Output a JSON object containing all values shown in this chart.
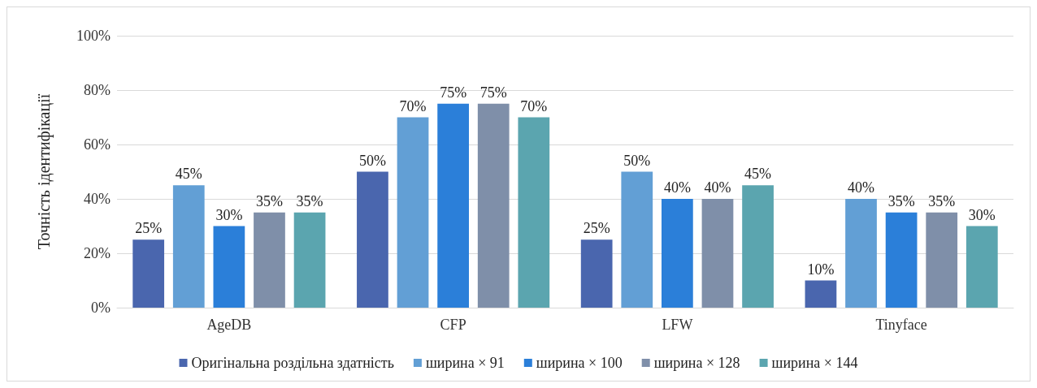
{
  "chart_data": {
    "type": "bar",
    "ylabel": "Точність ідентифікації",
    "categories": [
      "AgeDB",
      "CFP",
      "LFW",
      "Tinyface"
    ],
    "series": [
      {
        "name": "Оригінальна роздільна здатність",
        "color": "#4a66ae",
        "values": [
          25,
          50,
          25,
          10
        ],
        "value_labels": [
          "25%",
          "50%",
          "25%",
          "10%"
        ]
      },
      {
        "name": "ширина × 91",
        "color": "#629fd5",
        "values": [
          45,
          70,
          50,
          40
        ],
        "value_labels": [
          "45%",
          "70%",
          "50%",
          "40%"
        ]
      },
      {
        "name": "ширина × 100",
        "color": "#2b7fd9",
        "values": [
          30,
          75,
          40,
          35
        ],
        "value_labels": [
          "30%",
          "75%",
          "40%",
          "35%"
        ]
      },
      {
        "name": "ширина × 128",
        "color": "#7f8fa9",
        "values": [
          35,
          75,
          40,
          35
        ],
        "value_labels": [
          "35%",
          "75%",
          "40%",
          "35%"
        ]
      },
      {
        "name": "ширина × 144",
        "color": "#5ba5af",
        "values": [
          35,
          70,
          45,
          30
        ],
        "value_labels": [
          "35%",
          "70%",
          "45%",
          "30%"
        ]
      }
    ],
    "ylim": [
      0,
      100
    ],
    "yticks": [
      {
        "value": 0,
        "label": "0%"
      },
      {
        "value": 20,
        "label": "20%"
      },
      {
        "value": 40,
        "label": "40%"
      },
      {
        "value": 60,
        "label": "60%"
      },
      {
        "value": 80,
        "label": "80%"
      },
      {
        "value": 100,
        "label": "100%"
      }
    ],
    "grid": "y",
    "legend": "bottom"
  }
}
